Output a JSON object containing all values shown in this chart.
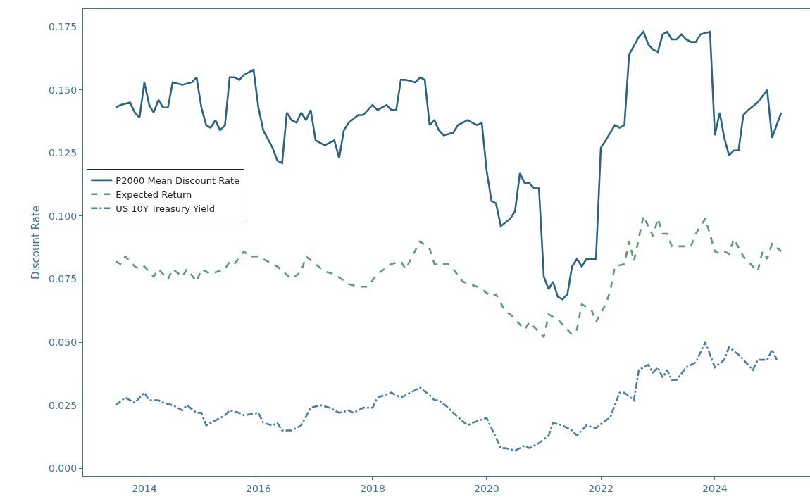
{
  "chart_data": {
    "type": "line",
    "ylabel": "Discount Rate",
    "legend": "left",
    "grid": false,
    "marker": "none",
    "xlim": [
      "2012-12-05",
      "2025-09-01"
    ],
    "xticks": [
      {
        "value": "2014-01-01",
        "label": "2014"
      },
      {
        "value": "2016-01-01",
        "label": "2016"
      },
      {
        "value": "2018-01-01",
        "label": "2018"
      },
      {
        "value": "2020-01-01",
        "label": "2020"
      },
      {
        "value": "2022-01-01",
        "label": "2022"
      },
      {
        "value": "2024-01-01",
        "label": "2024"
      }
    ],
    "ylim": [
      -0.003,
      0.182
    ],
    "yticks": [
      {
        "value": 0,
        "label": "0.000"
      },
      {
        "value": 0.025,
        "label": "0.025"
      },
      {
        "value": 0.05,
        "label": "0.050"
      },
      {
        "value": 0.075,
        "label": "0.075"
      },
      {
        "value": 0.1,
        "label": "0.100"
      },
      {
        "value": 0.125,
        "label": "0.125"
      },
      {
        "value": 0.15,
        "label": "0.150"
      },
      {
        "value": 0.175,
        "label": "0.175"
      }
    ],
    "series": [
      {
        "name": "P2000 Mean Discount Rate",
        "color": "#2b6482",
        "line_style": "solid",
        "x": [
          "2013-07",
          "2013-08",
          "2013-10",
          "2013-11",
          "2013-12",
          "2014-01",
          "2014-02",
          "2014-03",
          "2014-04",
          "2014-05",
          "2014-06",
          "2014-07",
          "2014-09",
          "2014-11",
          "2014-12",
          "2015-01",
          "2015-02",
          "2015-03",
          "2015-04",
          "2015-05",
          "2015-06",
          "2015-07",
          "2015-08",
          "2015-09",
          "2015-10",
          "2015-12",
          "2016-01",
          "2016-02",
          "2016-04",
          "2016-05",
          "2016-06",
          "2016-07",
          "2016-08",
          "2016-09",
          "2016-10",
          "2016-11",
          "2016-12",
          "2017-01",
          "2017-03",
          "2017-05",
          "2017-06",
          "2017-07",
          "2017-08",
          "2017-10",
          "2017-11",
          "2018-01",
          "2018-02",
          "2018-04",
          "2018-05",
          "2018-06",
          "2018-07",
          "2018-08",
          "2018-10",
          "2018-11",
          "2018-12",
          "2019-01",
          "2019-02",
          "2019-03",
          "2019-04",
          "2019-06",
          "2019-07",
          "2019-09",
          "2019-10",
          "2019-11",
          "2019-12",
          "2020-01",
          "2020-02",
          "2020-03",
          "2020-04",
          "2020-06",
          "2020-07",
          "2020-08",
          "2020-09",
          "2020-10",
          "2020-11",
          "2020-12",
          "2021-01",
          "2021-02",
          "2021-03",
          "2021-04",
          "2021-05",
          "2021-06",
          "2021-07",
          "2021-08",
          "2021-09",
          "2021-10",
          "2021-12",
          "2022-01",
          "2022-02",
          "2022-04",
          "2022-05",
          "2022-06",
          "2022-07",
          "2022-09",
          "2022-10",
          "2022-11",
          "2022-12",
          "2023-01",
          "2023-02",
          "2023-03",
          "2023-04",
          "2023-05",
          "2023-06",
          "2023-07",
          "2023-08",
          "2023-09",
          "2023-10",
          "2023-12",
          "2024-01",
          "2024-02",
          "2024-03",
          "2024-04",
          "2024-05",
          "2024-06",
          "2024-07",
          "2024-08",
          "2024-10",
          "2024-12",
          "2025-01",
          "2025-03"
        ],
        "values": [
          0.143,
          0.144,
          0.145,
          0.141,
          0.139,
          0.153,
          0.144,
          0.141,
          0.146,
          0.143,
          0.143,
          0.153,
          0.152,
          0.153,
          0.155,
          0.143,
          0.136,
          0.135,
          0.138,
          0.134,
          0.136,
          0.155,
          0.155,
          0.154,
          0.156,
          0.158,
          0.143,
          0.134,
          0.127,
          0.122,
          0.121,
          0.141,
          0.138,
          0.137,
          0.141,
          0.138,
          0.142,
          0.13,
          0.128,
          0.13,
          0.123,
          0.134,
          0.137,
          0.14,
          0.14,
          0.144,
          0.142,
          0.144,
          0.142,
          0.142,
          0.154,
          0.154,
          0.153,
          0.155,
          0.154,
          0.136,
          0.138,
          0.134,
          0.132,
          0.133,
          0.136,
          0.138,
          0.137,
          0.136,
          0.137,
          0.118,
          0.106,
          0.105,
          0.096,
          0.099,
          0.102,
          0.117,
          0.113,
          0.113,
          0.111,
          0.111,
          0.076,
          0.071,
          0.074,
          0.068,
          0.067,
          0.069,
          0.08,
          0.083,
          0.08,
          0.083,
          0.083,
          0.127,
          0.13,
          0.136,
          0.135,
          0.136,
          0.164,
          0.171,
          0.173,
          0.168,
          0.166,
          0.165,
          0.172,
          0.173,
          0.17,
          0.17,
          0.172,
          0.17,
          0.169,
          0.169,
          0.172,
          0.173,
          0.132,
          0.141,
          0.131,
          0.124,
          0.126,
          0.126,
          0.14,
          0.142,
          0.145,
          0.15,
          0.131,
          0.141
        ]
      },
      {
        "name": "Expected Return",
        "color": "#5a9e6f",
        "line_style": "dashed",
        "x": [
          "2013-07",
          "2013-08",
          "2013-09",
          "2013-11",
          "2013-12",
          "2014-01",
          "2014-03",
          "2014-04",
          "2014-06",
          "2014-07",
          "2014-09",
          "2014-10",
          "2014-12",
          "2015-01",
          "2015-03",
          "2015-06",
          "2015-07",
          "2015-08",
          "2015-10",
          "2015-11",
          "2016-01",
          "2016-03",
          "2016-05",
          "2016-08",
          "2016-10",
          "2016-11",
          "2017-03",
          "2017-05",
          "2017-08",
          "2017-10",
          "2017-12",
          "2018-02",
          "2018-05",
          "2018-07",
          "2018-08",
          "2018-11",
          "2019-01",
          "2019-02",
          "2019-05",
          "2019-06",
          "2019-08",
          "2019-11",
          "2019-12",
          "2020-02",
          "2020-03",
          "2020-05",
          "2020-06",
          "2020-08",
          "2020-09",
          "2020-10",
          "2021-01",
          "2021-02",
          "2021-04",
          "2021-05",
          "2021-07",
          "2021-08",
          "2021-09",
          "2021-11",
          "2021-12",
          "2022-02",
          "2022-03",
          "2022-04",
          "2022-06",
          "2022-07",
          "2022-08",
          "2022-10",
          "2022-11",
          "2022-12",
          "2023-01",
          "2023-02",
          "2023-03",
          "2023-04",
          "2023-06",
          "2023-08",
          "2023-09",
          "2023-11",
          "2024-01",
          "2024-02",
          "2024-03",
          "2024-04",
          "2024-05",
          "2024-07",
          "2024-10",
          "2024-11",
          "2024-12",
          "2025-01",
          "2025-03"
        ],
        "values": [
          0.082,
          0.081,
          0.084,
          0.08,
          0.079,
          0.08,
          0.076,
          0.079,
          0.075,
          0.079,
          0.076,
          0.079,
          0.074,
          0.079,
          0.077,
          0.079,
          0.082,
          0.081,
          0.086,
          0.084,
          0.084,
          0.082,
          0.08,
          0.075,
          0.078,
          0.084,
          0.078,
          0.077,
          0.073,
          0.072,
          0.072,
          0.077,
          0.081,
          0.082,
          0.079,
          0.09,
          0.087,
          0.081,
          0.081,
          0.079,
          0.074,
          0.072,
          0.071,
          0.068,
          0.069,
          0.062,
          0.061,
          0.057,
          0.055,
          0.058,
          0.052,
          0.061,
          0.059,
          0.057,
          0.053,
          0.055,
          0.065,
          0.063,
          0.058,
          0.065,
          0.07,
          0.08,
          0.081,
          0.09,
          0.082,
          0.1,
          0.096,
          0.092,
          0.099,
          0.093,
          0.093,
          0.088,
          0.088,
          0.088,
          0.093,
          0.099,
          0.086,
          0.085,
          0.086,
          0.085,
          0.091,
          0.084,
          0.078,
          0.086,
          0.083,
          0.089,
          0.086
        ]
      },
      {
        "name": "US 10Y Treasury Yield",
        "color": "#4a7fa5",
        "line_style": "dashdot",
        "x": [
          "2013-07",
          "2013-09",
          "2013-11",
          "2014-01",
          "2014-02",
          "2014-04",
          "2014-05",
          "2014-07",
          "2014-09",
          "2014-10",
          "2014-12",
          "2015-01",
          "2015-02",
          "2015-04",
          "2015-06",
          "2015-07",
          "2015-09",
          "2015-10",
          "2016-01",
          "2016-02",
          "2016-04",
          "2016-05",
          "2016-06",
          "2016-08",
          "2016-10",
          "2016-12",
          "2017-02",
          "2017-04",
          "2017-06",
          "2017-08",
          "2017-09",
          "2017-11",
          "2018-01",
          "2018-02",
          "2018-05",
          "2018-07",
          "2018-09",
          "2018-11",
          "2019-01",
          "2019-02",
          "2019-03",
          "2019-05",
          "2019-06",
          "2019-09",
          "2019-10",
          "2020-01",
          "2020-04",
          "2020-05",
          "2020-07",
          "2020-09",
          "2020-10",
          "2020-12",
          "2021-02",
          "2021-03",
          "2021-05",
          "2021-07",
          "2021-08",
          "2021-10",
          "2021-12",
          "2022-02",
          "2022-03",
          "2022-05",
          "2022-06",
          "2022-08",
          "2022-09",
          "2022-11",
          "2022-12",
          "2023-01",
          "2023-02",
          "2023-03",
          "2023-04",
          "2023-05",
          "2023-07",
          "2023-09",
          "2023-11",
          "2024-01",
          "2024-03",
          "2024-04",
          "2024-06",
          "2024-08",
          "2024-09",
          "2024-10",
          "2024-12",
          "2025-01",
          "2025-02"
        ],
        "values": [
          0.025,
          0.028,
          0.026,
          0.03,
          0.027,
          0.027,
          0.026,
          0.025,
          0.023,
          0.025,
          0.022,
          0.022,
          0.017,
          0.019,
          0.021,
          0.023,
          0.022,
          0.021,
          0.022,
          0.018,
          0.017,
          0.018,
          0.015,
          0.015,
          0.017,
          0.024,
          0.025,
          0.024,
          0.022,
          0.023,
          0.022,
          0.024,
          0.024,
          0.028,
          0.03,
          0.028,
          0.03,
          0.032,
          0.029,
          0.027,
          0.027,
          0.024,
          0.022,
          0.017,
          0.018,
          0.02,
          0.008,
          0.008,
          0.007,
          0.009,
          0.008,
          0.01,
          0.013,
          0.018,
          0.017,
          0.015,
          0.013,
          0.017,
          0.016,
          0.019,
          0.02,
          0.03,
          0.03,
          0.027,
          0.039,
          0.041,
          0.038,
          0.04,
          0.036,
          0.039,
          0.035,
          0.035,
          0.04,
          0.042,
          0.05,
          0.04,
          0.043,
          0.048,
          0.045,
          0.041,
          0.039,
          0.043,
          0.043,
          0.047,
          0.043
        ]
      }
    ]
  }
}
